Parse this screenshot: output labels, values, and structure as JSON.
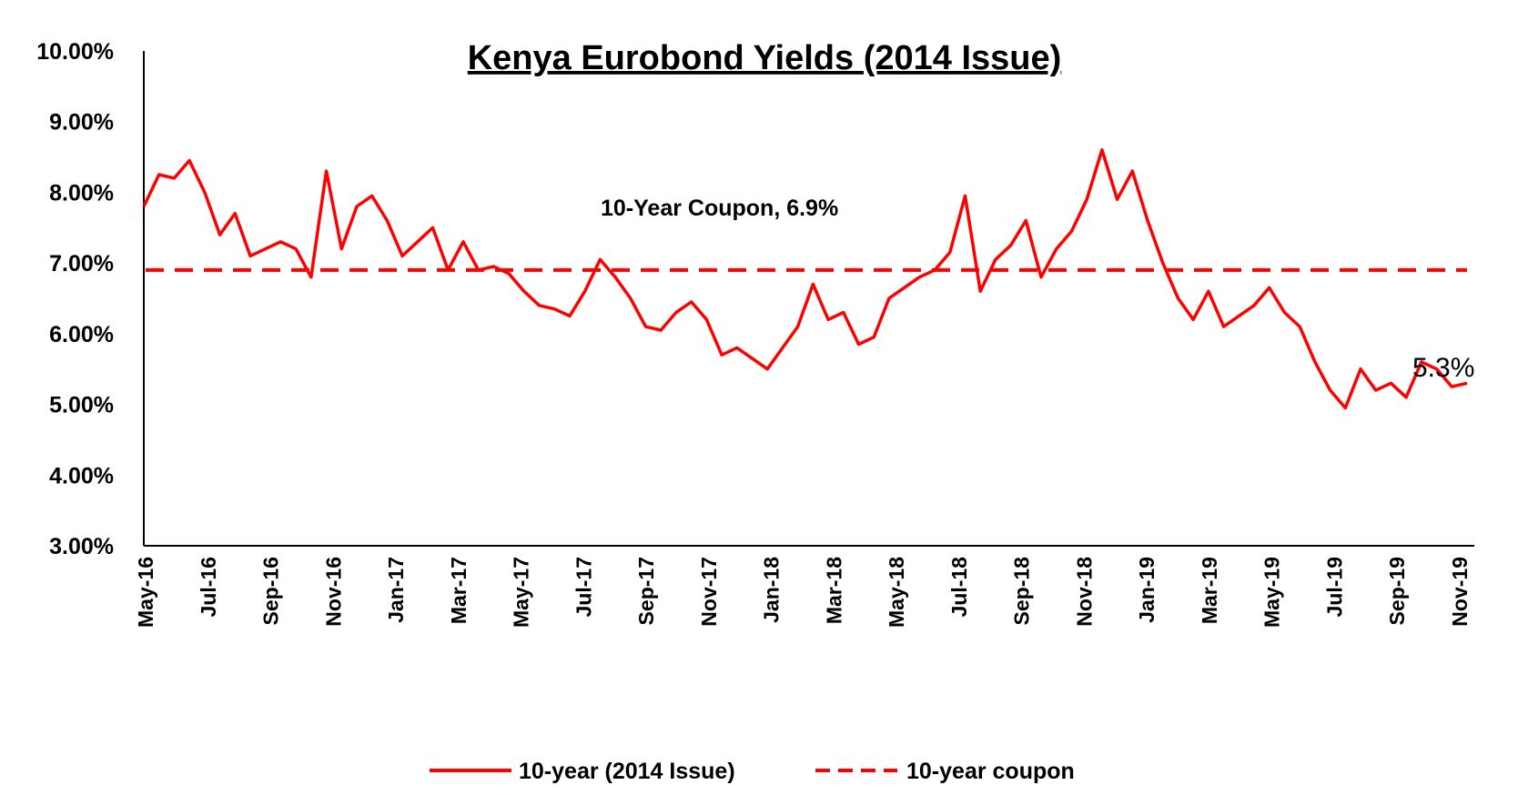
{
  "chart_data": {
    "type": "line",
    "title": "Kenya Eurobond Yields (2014 Issue)",
    "xlabel": "",
    "ylabel": "",
    "ylim": [
      3.0,
      10.0
    ],
    "y_tick_labels": [
      "10.00%",
      "9.00%",
      "8.00%",
      "7.00%",
      "6.00%",
      "5.00%",
      "4.00%",
      "3.00%"
    ],
    "y_tick_values": [
      10,
      9,
      8,
      7,
      6,
      5,
      4,
      3
    ],
    "x_tick_labels": [
      "May-16",
      "Jul-16",
      "Sep-16",
      "Nov-16",
      "Jan-17",
      "Mar-17",
      "May-17",
      "Jul-17",
      "Sep-17",
      "Nov-17",
      "Jan-18",
      "Mar-18",
      "May-18",
      "Jul-18",
      "Sep-18",
      "Nov-18",
      "Jan-19",
      "Mar-19",
      "May-19",
      "Jul-19",
      "Sep-19",
      "Nov-19"
    ],
    "grid": false,
    "legend": "bottom",
    "series": [
      {
        "name": "10-year (2014 Issue)",
        "color": "#ff0000",
        "style": "solid",
        "x": [
          "May-16",
          "Jun-16",
          "Jun-16",
          "Jun-16",
          "Jul-16",
          "Jul-16",
          "Aug-16",
          "Aug-16",
          "Sep-16",
          "Sep-16",
          "Oct-16",
          "Oct-16",
          "Nov-16",
          "Nov-16",
          "Nov-16",
          "Dec-16",
          "Dec-16",
          "Jan-17",
          "Jan-17",
          "Feb-17",
          "Feb-17",
          "Mar-17",
          "Mar-17",
          "Apr-17",
          "Apr-17",
          "May-17",
          "May-17",
          "Jun-17",
          "Jun-17",
          "Jul-17",
          "Jul-17",
          "Aug-17",
          "Aug-17",
          "Sep-17",
          "Sep-17",
          "Oct-17",
          "Oct-17",
          "Nov-17",
          "Nov-17",
          "Dec-17",
          "Dec-17",
          "Jan-18",
          "Jan-18",
          "Feb-18",
          "Feb-18",
          "Mar-18",
          "Mar-18",
          "Apr-18",
          "Apr-18",
          "May-18",
          "May-18",
          "Jun-18",
          "Jun-18",
          "Jun-18",
          "Jul-18",
          "Jul-18",
          "Aug-18",
          "Aug-18",
          "Sep-18",
          "Sep-18",
          "Oct-18",
          "Oct-18",
          "Nov-18",
          "Nov-18",
          "Dec-18",
          "Dec-18",
          "Jan-19",
          "Jan-19",
          "Feb-19",
          "Feb-19",
          "Mar-19",
          "Mar-19",
          "Apr-19",
          "Apr-19",
          "May-19",
          "May-19",
          "Jun-19",
          "Jun-19",
          "Jul-19",
          "Jul-19",
          "Aug-19",
          "Aug-19",
          "Sep-19",
          "Sep-19",
          "Oct-19",
          "Oct-19",
          "Nov-19",
          "Nov-19"
        ],
        "values": [
          7.8,
          8.25,
          8.2,
          8.45,
          8.0,
          7.4,
          7.7,
          7.1,
          7.2,
          7.3,
          7.2,
          6.8,
          8.3,
          7.2,
          7.8,
          7.95,
          7.6,
          7.1,
          7.3,
          7.5,
          6.9,
          7.3,
          6.9,
          6.95,
          6.85,
          6.6,
          6.4,
          6.35,
          6.25,
          6.6,
          7.05,
          6.8,
          6.5,
          6.1,
          6.05,
          6.3,
          6.45,
          6.2,
          5.7,
          5.8,
          5.65,
          5.5,
          5.8,
          6.1,
          6.7,
          6.2,
          6.3,
          5.85,
          5.95,
          6.5,
          6.65,
          6.8,
          6.9,
          7.15,
          7.95,
          6.6,
          7.05,
          7.25,
          7.6,
          6.8,
          7.2,
          7.45,
          7.9,
          8.6,
          7.9,
          8.3,
          7.6,
          7.0,
          6.5,
          6.2,
          6.6,
          6.1,
          6.25,
          6.4,
          6.65,
          6.3,
          6.1,
          5.6,
          5.2,
          4.95,
          5.5,
          5.2,
          5.3,
          5.1,
          5.6,
          5.5,
          5.25,
          5.3
        ]
      },
      {
        "name": "10-year coupon",
        "color": "#ff0000",
        "style": "dashed",
        "constant": 6.9
      }
    ],
    "annotations": [
      {
        "text": "10-Year Coupon,  6.9%"
      },
      {
        "text": "5.3%"
      }
    ]
  }
}
